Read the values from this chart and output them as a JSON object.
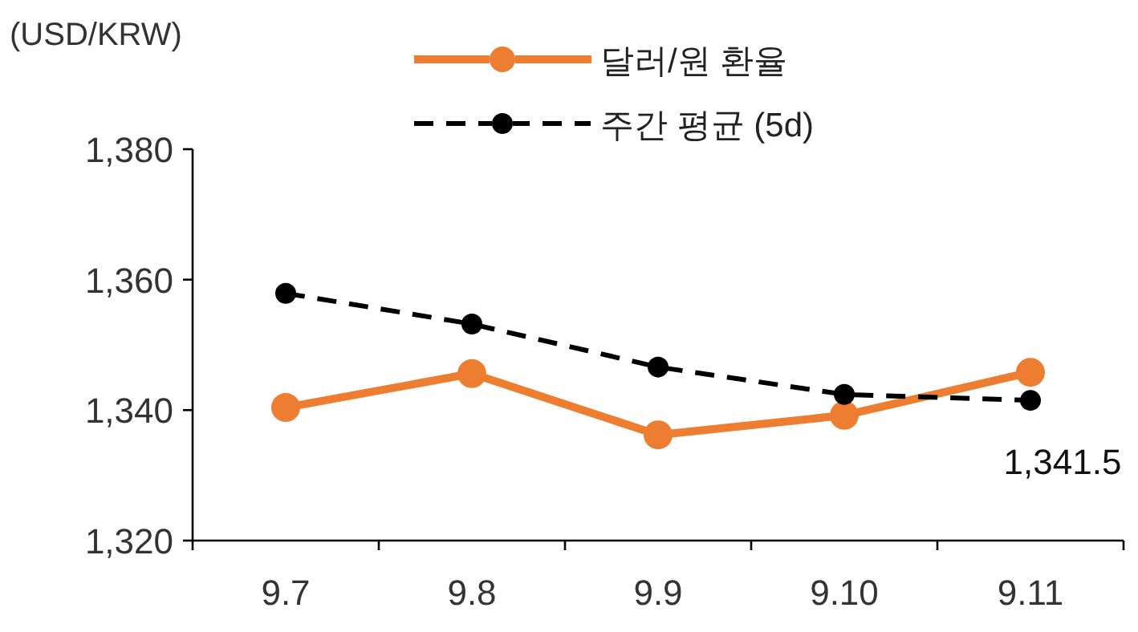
{
  "chart_data": {
    "type": "line",
    "ylabel": "(USD/KRW)",
    "categories": [
      "9.7",
      "9.8",
      "9.9",
      "9.10",
      "9.11"
    ],
    "series": [
      {
        "name": "달러/원 환율",
        "color": "#ed7d31",
        "values": [
          1340.4,
          1345.6,
          1336.2,
          1339.2,
          1345.8
        ],
        "marker": "circle",
        "line_style": "solid"
      },
      {
        "name": "주간 평균 (5d)",
        "color": "#000000",
        "values": [
          1357.9,
          1353.2,
          1346.6,
          1342.4,
          1341.5
        ],
        "marker": "circle",
        "line_style": "dashed",
        "value_labels": [
          null,
          null,
          null,
          null,
          "1,341.5"
        ]
      }
    ],
    "ylim": [
      1320,
      1380
    ],
    "yticks": [
      {
        "value": 1320,
        "label": "1,320"
      },
      {
        "value": 1340,
        "label": "1,340"
      },
      {
        "value": 1360,
        "label": "1,360"
      },
      {
        "value": 1380,
        "label": "1,380"
      }
    ],
    "legend": "top"
  }
}
